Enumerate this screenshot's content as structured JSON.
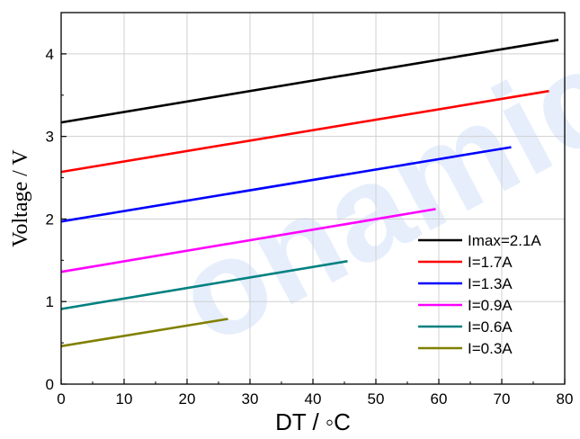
{
  "watermark": "onamic",
  "chart_data": {
    "type": "line",
    "xlabel": "DT / ◦C",
    "ylabel": "Voltage / V",
    "xlim": [
      0,
      80
    ],
    "ylim": [
      0,
      4.5
    ],
    "x_ticks": [
      0,
      10,
      20,
      30,
      40,
      50,
      60,
      70,
      80
    ],
    "y_ticks": [
      0,
      1,
      2,
      3,
      4
    ],
    "grid": true,
    "legend_position": "bottom-right",
    "series": [
      {
        "name": "Imax=2.1A",
        "color": "#000000",
        "x": [
          0,
          79
        ],
        "y": [
          3.17,
          4.17
        ]
      },
      {
        "name": "I=1.7A",
        "color": "#ff0000",
        "x": [
          0,
          77.5
        ],
        "y": [
          2.57,
          3.55
        ]
      },
      {
        "name": "I=1.3A",
        "color": "#0000ff",
        "x": [
          0,
          71.5
        ],
        "y": [
          1.97,
          2.87
        ]
      },
      {
        "name": "I=0.9A",
        "color": "#ff00ff",
        "x": [
          0,
          59.5
        ],
        "y": [
          1.36,
          2.12
        ]
      },
      {
        "name": "I=0.6A",
        "color": "#008080",
        "x": [
          0,
          45.5
        ],
        "y": [
          0.91,
          1.49
        ]
      },
      {
        "name": "I=0.3A",
        "color": "#808000",
        "x": [
          0,
          26.5
        ],
        "y": [
          0.46,
          0.79
        ]
      }
    ]
  }
}
